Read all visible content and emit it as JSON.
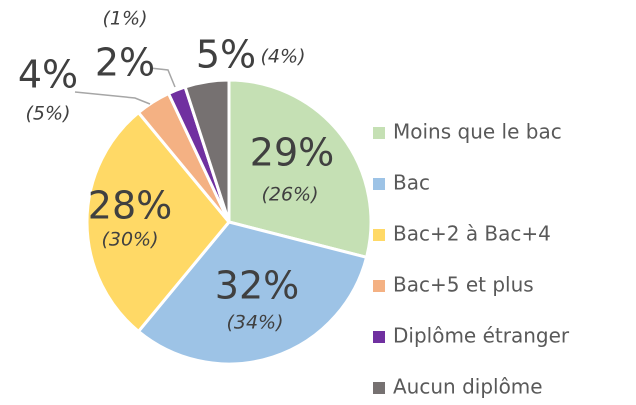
{
  "chart_data": {
    "type": "pie",
    "categories": [
      "Moins que le bac",
      "Bac",
      "Bac+2 à Bac+4",
      "Bac+5 et plus",
      "Diplôme étranger",
      "Aucun diplôme"
    ],
    "values": [
      29,
      32,
      28,
      4,
      2,
      5
    ],
    "value_labels": [
      "29%",
      "32%",
      "28%",
      "4%",
      "2%",
      "5%"
    ],
    "secondary_labels": [
      "(26%)",
      "(34%)",
      "(30%)",
      "(5%)",
      "(1%)",
      "(4%)"
    ],
    "colors": [
      "#c5e0b4",
      "#9dc3e6",
      "#ffd966",
      "#f4b183",
      "#7030a0",
      "#767171"
    ],
    "legend": "right"
  }
}
